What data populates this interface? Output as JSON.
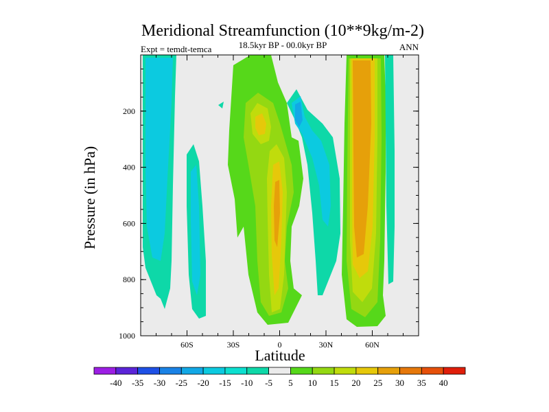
{
  "chart_data": {
    "type": "heatmap",
    "title": "Meridional Streamfunction (10**9kg/m-2)",
    "subtitle": "18.5kyr BP - 00.0kyr BP",
    "left_note": "Expt = temdt-temca",
    "right_note": "ANN",
    "xlabel": "Latitude",
    "ylabel": "Pressure (in hPa)",
    "xlim": [
      -90,
      90
    ],
    "ylim": [
      1000,
      0
    ],
    "x_ticks": [
      {
        "value": -60,
        "label": "60S"
      },
      {
        "value": -30,
        "label": "30S"
      },
      {
        "value": 0,
        "label": "0"
      },
      {
        "value": 30,
        "label": "30N"
      },
      {
        "value": 60,
        "label": "60N"
      }
    ],
    "y_ticks": [
      {
        "value": 200,
        "label": "200"
      },
      {
        "value": 400,
        "label": "400"
      },
      {
        "value": 600,
        "label": "600"
      },
      {
        "value": 800,
        "label": "800"
      },
      {
        "value": 1000,
        "label": "1000"
      }
    ],
    "colorbar": {
      "labels": [
        "-40",
        "-35",
        "-30",
        "-25",
        "-20",
        "-15",
        "-10",
        "-5",
        "5",
        "10",
        "15",
        "20",
        "25",
        "30",
        "35",
        "40"
      ],
      "colors": [
        "#9c1ee4",
        "#5b24d8",
        "#1e50e6",
        "#1a82e6",
        "#12a8e6",
        "#0ccae0",
        "#0ce0d0",
        "#0ed8a8",
        "#ebebeb",
        "#56d81a",
        "#94d812",
        "#c0dc0c",
        "#e6c80a",
        "#e6a00a",
        "#e6780a",
        "#e6500a",
        "#e01e0a"
      ]
    },
    "features": [
      {
        "name": "cell-60n-deep",
        "shade": "orange",
        "x_range": [
          45,
          67
        ],
        "p_range": [
          0,
          980
        ],
        "core": [
          48,
          58,
          80,
          860
        ]
      },
      {
        "name": "cell-eq-north",
        "shade": "orange",
        "x_range": [
          -5,
          12
        ],
        "p_range": [
          0,
          970
        ],
        "core": [
          -1,
          6,
          250,
          900
        ]
      },
      {
        "name": "cell-upper-south",
        "shade": "orange",
        "x_range": [
          -25,
          -2
        ],
        "p_range": [
          0,
          420
        ],
        "core": [
          -18,
          -10,
          150,
          320
        ]
      },
      {
        "name": "cell-sh-60",
        "shade": "cyan",
        "x_range": [
          -80,
          -68
        ],
        "p_range": [
          0,
          940
        ]
      },
      {
        "name": "cell-sh-55",
        "shade": "cyan",
        "x_range": [
          -58,
          -50
        ],
        "p_range": [
          320,
          980
        ]
      },
      {
        "name": "cell-tropic-north",
        "shade": "cyan",
        "x_range": [
          12,
          32
        ],
        "p_range": [
          100,
          850
        ]
      }
    ]
  }
}
